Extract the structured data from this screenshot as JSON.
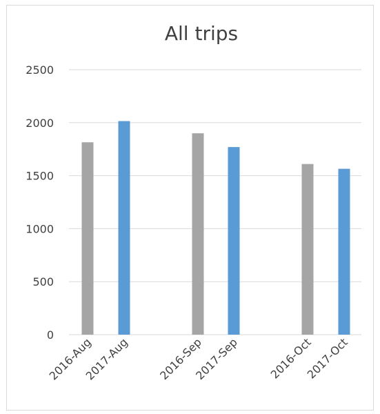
{
  "chart_data": {
    "type": "bar",
    "title": "All trips",
    "categories": [
      "2016-Aug",
      "2017-Aug",
      "2016-Sep",
      "2017-Sep",
      "2016-Oct",
      "2017-Oct"
    ],
    "values": [
      1815,
      2015,
      1900,
      1770,
      1610,
      1565
    ],
    "bar_colors": [
      "#a5a5a5",
      "#5b9bd5",
      "#a5a5a5",
      "#5b9bd5",
      "#a5a5a5",
      "#5b9bd5"
    ],
    "ylim": [
      0,
      2500
    ],
    "yticks": [
      0,
      500,
      1000,
      1500,
      2000,
      2500
    ],
    "xlabel": "",
    "ylabel": "",
    "grid": true,
    "legend": "none"
  }
}
